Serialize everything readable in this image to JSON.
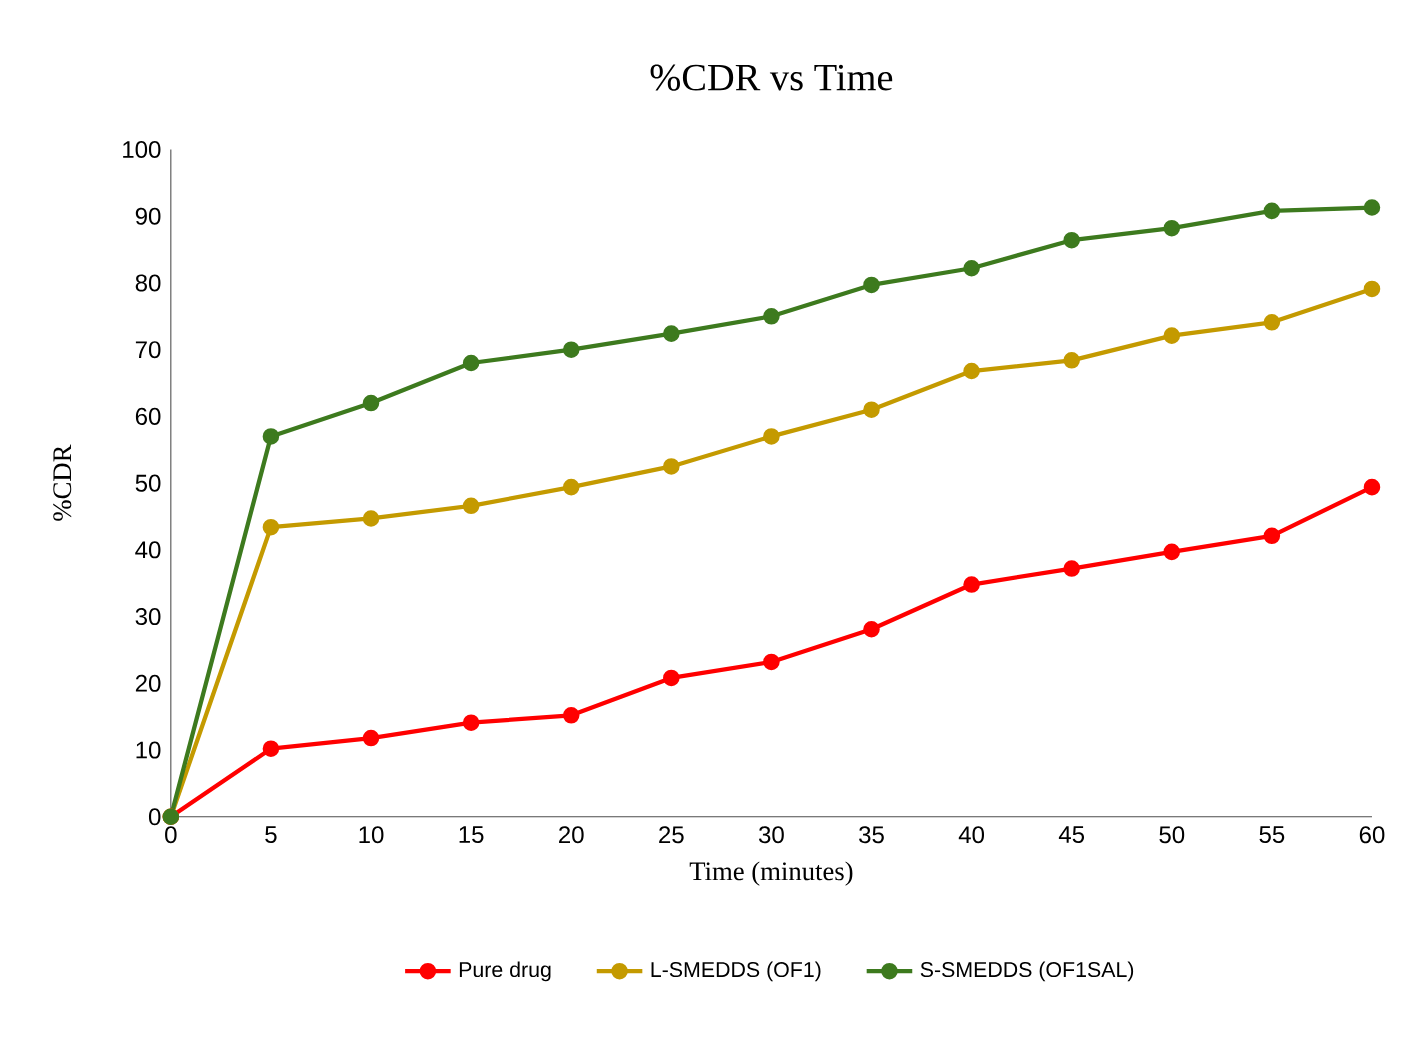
{
  "chart_data": {
    "type": "line",
    "title": "%CDR vs Time",
    "xlabel": "Time (minutes)",
    "ylabel": "%CDR",
    "x": [
      0,
      5,
      10,
      15,
      20,
      25,
      30,
      35,
      40,
      45,
      50,
      55,
      60
    ],
    "xlim": [
      0,
      60
    ],
    "xticks": [
      0,
      5,
      10,
      15,
      20,
      25,
      30,
      35,
      40,
      45,
      50,
      55,
      60
    ],
    "ylim": [
      0,
      100
    ],
    "yticks": [
      0,
      10,
      20,
      30,
      40,
      50,
      60,
      70,
      80,
      90,
      100
    ],
    "grid": false,
    "legend": "bottom",
    "marker": "circle",
    "line_style": "solid",
    "series": [
      {
        "name": "Pure drug",
        "color": "#ff0000",
        "values": [
          0,
          10.2,
          11.8,
          14.1,
          15.2,
          20.8,
          23.2,
          28.1,
          34.8,
          37.2,
          39.7,
          42.1,
          49.4
        ]
      },
      {
        "name": "L-SMEDDS (OF1)",
        "color": "#c49a00",
        "values": [
          0,
          43.4,
          44.7,
          46.6,
          49.4,
          52.5,
          57.0,
          61.0,
          66.8,
          68.4,
          72.1,
          74.1,
          79.1
        ]
      },
      {
        "name": "S-SMEDDS (OF1SAL)",
        "color": "#3d7a1e",
        "values": [
          0,
          57.0,
          62.0,
          68.0,
          70.0,
          72.4,
          75.0,
          79.7,
          82.2,
          86.4,
          88.2,
          90.8,
          91.3
        ]
      }
    ]
  }
}
